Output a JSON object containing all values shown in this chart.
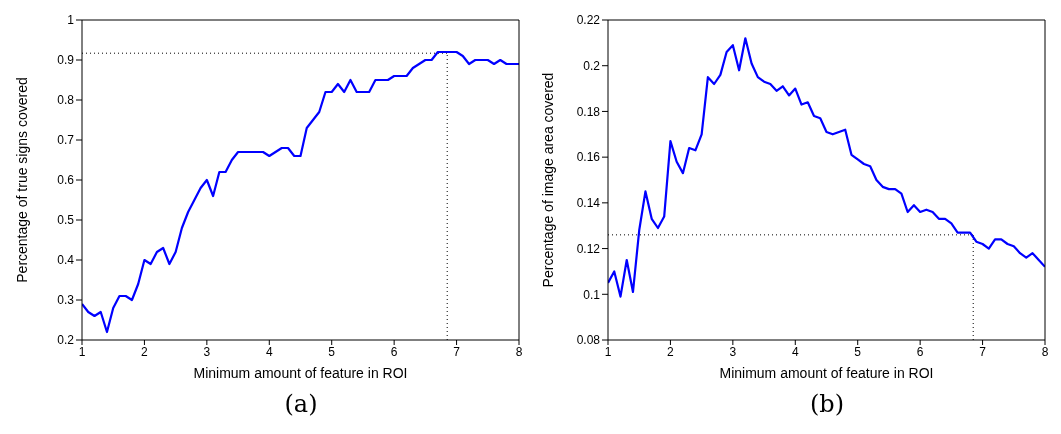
{
  "chart_data": [
    {
      "type": "line",
      "xlabel": "Minimum amount of feature in ROI",
      "ylabel": "Percentage of true signs covered",
      "annotations": [
        "(a)"
      ],
      "x": [
        1,
        1.1,
        1.2,
        1.3,
        1.4,
        1.5,
        1.6,
        1.7,
        1.8,
        1.9,
        2,
        2.1,
        2.2,
        2.3,
        2.4,
        2.5,
        2.6,
        2.7,
        2.8,
        2.9,
        3,
        3.1,
        3.2,
        3.3,
        3.4,
        3.5,
        3.6,
        3.7,
        3.8,
        3.9,
        4,
        4.1,
        4.2,
        4.3,
        4.4,
        4.5,
        4.6,
        4.7,
        4.8,
        4.9,
        5,
        5.1,
        5.2,
        5.3,
        5.4,
        5.5,
        5.6,
        5.7,
        5.8,
        5.9,
        6,
        6.1,
        6.2,
        6.3,
        6.4,
        6.5,
        6.6,
        6.7,
        6.8,
        6.9,
        7,
        7.1,
        7.2,
        7.3,
        7.4,
        7.5,
        7.6,
        7.7,
        7.8,
        7.9,
        8
      ],
      "series": [
        {
          "color": "#0000ff",
          "values": [
            0.29,
            0.27,
            0.26,
            0.27,
            0.22,
            0.28,
            0.31,
            0.31,
            0.3,
            0.34,
            0.4,
            0.39,
            0.42,
            0.43,
            0.39,
            0.42,
            0.48,
            0.52,
            0.55,
            0.58,
            0.6,
            0.56,
            0.62,
            0.62,
            0.65,
            0.67,
            0.67,
            0.67,
            0.67,
            0.67,
            0.66,
            0.67,
            0.68,
            0.68,
            0.66,
            0.66,
            0.73,
            0.75,
            0.77,
            0.82,
            0.82,
            0.84,
            0.82,
            0.85,
            0.82,
            0.82,
            0.82,
            0.85,
            0.85,
            0.85,
            0.86,
            0.86,
            0.86,
            0.88,
            0.89,
            0.9,
            0.9,
            0.92,
            0.92,
            0.92,
            0.92,
            0.91,
            0.89,
            0.9,
            0.9,
            0.9,
            0.89,
            0.9,
            0.89,
            0.89,
            0.89
          ]
        }
      ],
      "xlim": [
        1,
        8
      ],
      "xticks": [
        1,
        2,
        3,
        4,
        5,
        6,
        7,
        8
      ],
      "ylim": [
        0.2,
        1
      ],
      "yticks": [
        0.2,
        0.3,
        0.4,
        0.5,
        0.6,
        0.7,
        0.8,
        0.9,
        1
      ],
      "grid": false,
      "legend": false,
      "marker": "none",
      "line_style": "solid",
      "ref_lines": [
        {
          "axis": "y",
          "value": 0.917,
          "color": "#000000",
          "line_style": "dotted"
        },
        {
          "axis": "x",
          "value": 6.85,
          "color": "#000000",
          "line_style": "dotted"
        }
      ]
    },
    {
      "type": "line",
      "xlabel": "Minimum amount of feature in ROI",
      "ylabel": "Percentage of image area covered",
      "annotations": [
        "(b)"
      ],
      "x": [
        1,
        1.1,
        1.2,
        1.3,
        1.4,
        1.5,
        1.6,
        1.7,
        1.8,
        1.9,
        2,
        2.1,
        2.2,
        2.3,
        2.4,
        2.5,
        2.6,
        2.7,
        2.8,
        2.9,
        3,
        3.1,
        3.2,
        3.3,
        3.4,
        3.5,
        3.6,
        3.7,
        3.8,
        3.9,
        4,
        4.1,
        4.2,
        4.3,
        4.4,
        4.5,
        4.6,
        4.7,
        4.8,
        4.9,
        5,
        5.1,
        5.2,
        5.3,
        5.4,
        5.5,
        5.6,
        5.7,
        5.8,
        5.9,
        6,
        6.1,
        6.2,
        6.3,
        6.4,
        6.5,
        6.6,
        6.7,
        6.8,
        6.9,
        7,
        7.1,
        7.2,
        7.3,
        7.4,
        7.5,
        7.6,
        7.7,
        7.8,
        7.9,
        8
      ],
      "series": [
        {
          "color": "#0000ff",
          "values": [
            0.105,
            0.11,
            0.099,
            0.115,
            0.101,
            0.128,
            0.145,
            0.133,
            0.129,
            0.134,
            0.167,
            0.158,
            0.153,
            0.164,
            0.163,
            0.17,
            0.195,
            0.192,
            0.196,
            0.206,
            0.209,
            0.198,
            0.212,
            0.201,
            0.195,
            0.193,
            0.192,
            0.189,
            0.191,
            0.187,
            0.19,
            0.183,
            0.184,
            0.178,
            0.177,
            0.171,
            0.17,
            0.171,
            0.172,
            0.161,
            0.159,
            0.157,
            0.156,
            0.15,
            0.147,
            0.146,
            0.146,
            0.144,
            0.136,
            0.139,
            0.136,
            0.137,
            0.136,
            0.133,
            0.133,
            0.131,
            0.127,
            0.127,
            0.127,
            0.123,
            0.122,
            0.12,
            0.124,
            0.124,
            0.122,
            0.121,
            0.118,
            0.116,
            0.118,
            0.115,
            0.112
          ]
        }
      ],
      "xlim": [
        1,
        8
      ],
      "xticks": [
        1,
        2,
        3,
        4,
        5,
        6,
        7,
        8
      ],
      "ylim": [
        0.08,
        0.22
      ],
      "yticks": [
        0.08,
        0.1,
        0.12,
        0.14,
        0.16,
        0.18,
        0.2,
        0.22
      ],
      "grid": false,
      "legend": false,
      "marker": "none",
      "line_style": "solid",
      "ref_lines": [
        {
          "axis": "y",
          "value": 0.126,
          "color": "#000000",
          "line_style": "dotted"
        },
        {
          "axis": "x",
          "value": 6.85,
          "color": "#000000",
          "line_style": "dotted"
        }
      ]
    }
  ]
}
